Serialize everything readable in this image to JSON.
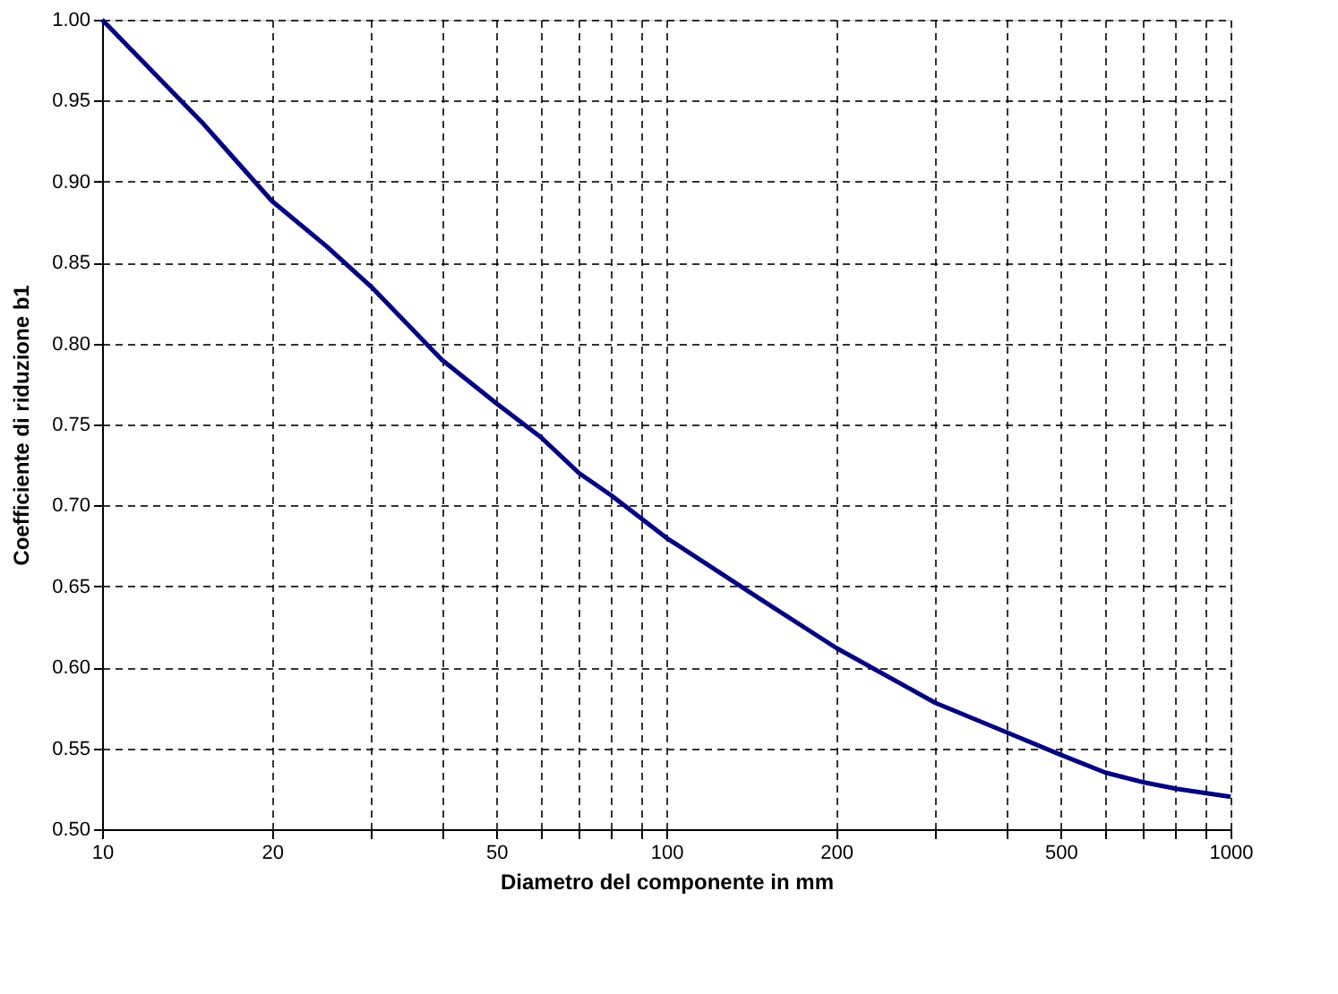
{
  "chart_data": {
    "type": "line",
    "xlabel": "Diametro del componente in mm",
    "ylabel": "Coefficiente di riduzione b1",
    "x": [
      10,
      15,
      20,
      25,
      30,
      40,
      50,
      60,
      70,
      80,
      100,
      150,
      200,
      300,
      400,
      500,
      600,
      700,
      800,
      1000
    ],
    "series": [
      {
        "color": "#000080",
        "values": [
          1.0,
          0.937,
          0.888,
          0.86,
          0.835,
          0.79,
          0.763,
          0.742,
          0.72,
          0.706,
          0.68,
          0.64,
          0.612,
          0.578,
          0.56,
          0.546,
          0.535,
          0.529,
          0.525,
          0.52
        ]
      }
    ],
    "log": "x",
    "xlim": [
      10,
      1000
    ],
    "xticks": [
      10,
      20,
      {
        "value": 30,
        "label": null
      },
      {
        "value": 40,
        "label": null
      },
      50,
      {
        "value": 60,
        "label": null
      },
      {
        "value": 70,
        "label": null
      },
      {
        "value": 80,
        "label": null
      },
      {
        "value": 90,
        "label": null
      },
      100,
      200,
      {
        "value": 300,
        "label": null
      },
      {
        "value": 400,
        "label": null
      },
      500,
      {
        "value": 600,
        "label": null
      },
      {
        "value": 700,
        "label": null
      },
      {
        "value": 800,
        "label": null
      },
      {
        "value": 900,
        "label": null
      },
      1000
    ],
    "ylim": [
      0.5,
      1.0
    ],
    "yticks": [
      {
        "value": 0.5,
        "label": "0.50"
      },
      {
        "value": 0.55,
        "label": "0.55"
      },
      {
        "value": 0.6,
        "label": "0.60"
      },
      {
        "value": 0.65,
        "label": "0.65"
      },
      {
        "value": 0.7,
        "label": "0.70"
      },
      {
        "value": 0.75,
        "label": "0.75"
      },
      {
        "value": 0.8,
        "label": "0.80"
      },
      {
        "value": 0.85,
        "label": "0.85"
      },
      {
        "value": 0.9,
        "label": "0.90"
      },
      {
        "value": 0.95,
        "label": "0.95"
      },
      {
        "value": 1.0,
        "label": "1.00"
      }
    ],
    "grid": true,
    "marker": "none",
    "line_style": "solid"
  }
}
